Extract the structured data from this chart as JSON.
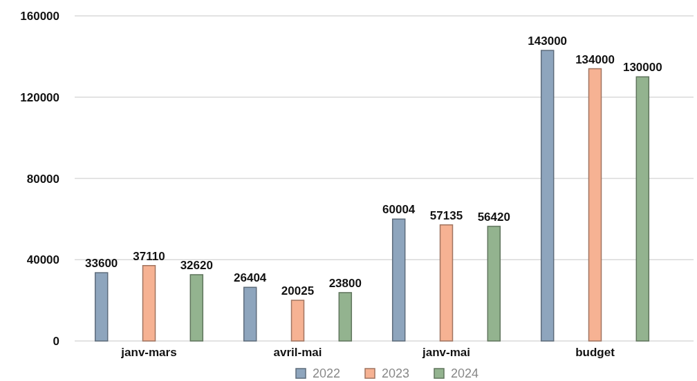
{
  "chart_data": {
    "type": "bar",
    "categories": [
      "janv-mars",
      "avril-mai",
      "janv-mai",
      "budget"
    ],
    "series": [
      {
        "name": "2022",
        "color": "#8ea5bd",
        "values": [
          33600,
          26404,
          60004,
          143000
        ]
      },
      {
        "name": "2023",
        "color": "#f6b293",
        "values": [
          37110,
          20025,
          57135,
          134000
        ]
      },
      {
        "name": "2024",
        "color": "#93b38f",
        "values": [
          32620,
          23800,
          56420,
          130000
        ]
      }
    ],
    "ylim": [
      0,
      160000
    ],
    "yticks": [
      0,
      40000,
      80000,
      120000,
      160000
    ],
    "grid": "y",
    "legend": "bottom",
    "data_labels": true
  }
}
